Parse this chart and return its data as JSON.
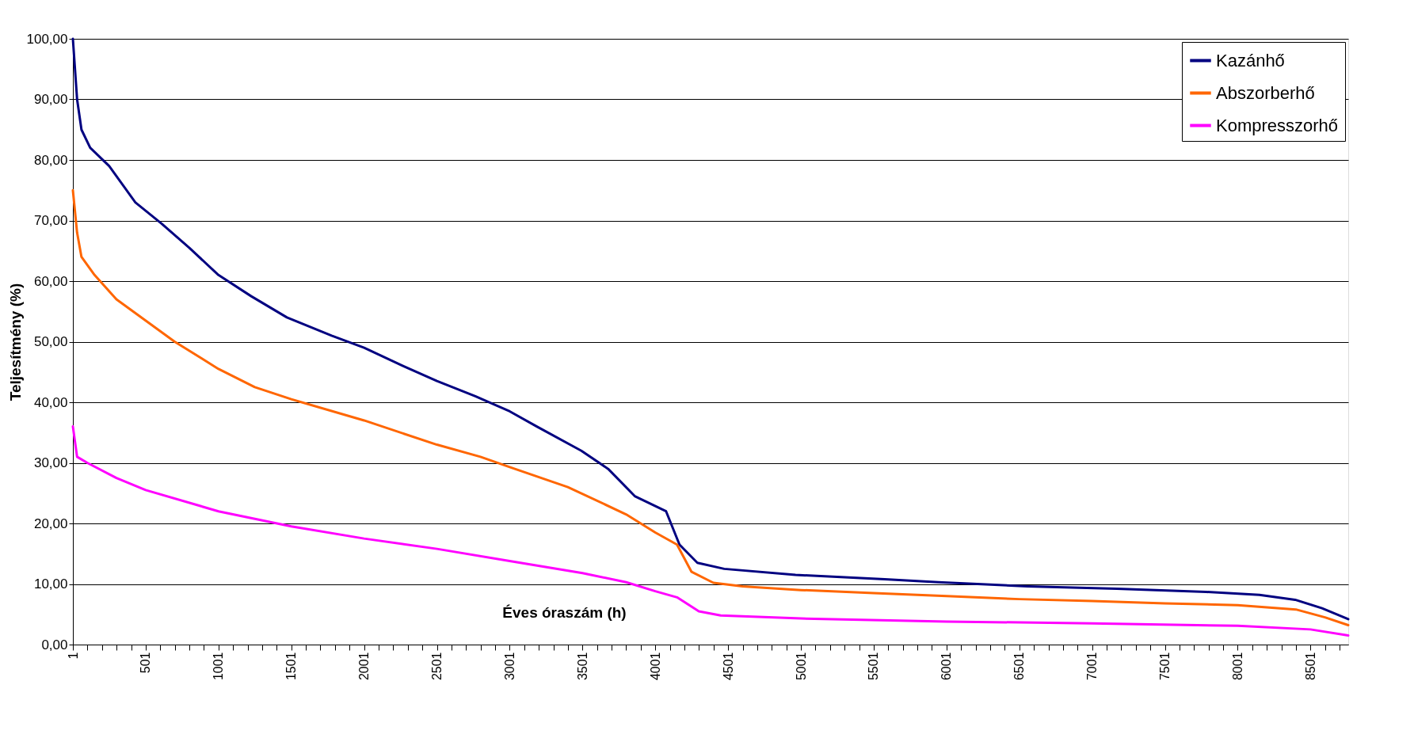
{
  "chart_data": {
    "type": "line",
    "xlabel": "Éves óraszám (h)",
    "ylabel": "Teljesítmény (%)",
    "xlim": [
      1,
      8760
    ],
    "ylim": [
      0,
      100
    ],
    "xticks": [
      1,
      {
        "value": 101,
        "label": null
      },
      {
        "value": 201,
        "label": null
      },
      {
        "value": 301,
        "label": null
      },
      {
        "value": 401,
        "label": null
      },
      501,
      {
        "value": 601,
        "label": null
      },
      {
        "value": 701,
        "label": null
      },
      {
        "value": 801,
        "label": null
      },
      {
        "value": 901,
        "label": null
      },
      1001,
      {
        "value": 1101,
        "label": null
      },
      {
        "value": 1201,
        "label": null
      },
      {
        "value": 1301,
        "label": null
      },
      {
        "value": 1401,
        "label": null
      },
      1501,
      {
        "value": 1601,
        "label": null
      },
      {
        "value": 1701,
        "label": null
      },
      {
        "value": 1801,
        "label": null
      },
      {
        "value": 1901,
        "label": null
      },
      2001,
      {
        "value": 2101,
        "label": null
      },
      {
        "value": 2201,
        "label": null
      },
      {
        "value": 2301,
        "label": null
      },
      {
        "value": 2401,
        "label": null
      },
      2501,
      {
        "value": 2601,
        "label": null
      },
      {
        "value": 2701,
        "label": null
      },
      {
        "value": 2801,
        "label": null
      },
      {
        "value": 2901,
        "label": null
      },
      3001,
      {
        "value": 3101,
        "label": null
      },
      {
        "value": 3201,
        "label": null
      },
      {
        "value": 3301,
        "label": null
      },
      {
        "value": 3401,
        "label": null
      },
      3501,
      {
        "value": 3601,
        "label": null
      },
      {
        "value": 3701,
        "label": null
      },
      {
        "value": 3801,
        "label": null
      },
      {
        "value": 3901,
        "label": null
      },
      4001,
      {
        "value": 4101,
        "label": null
      },
      {
        "value": 4201,
        "label": null
      },
      {
        "value": 4301,
        "label": null
      },
      {
        "value": 4401,
        "label": null
      },
      4501,
      {
        "value": 4601,
        "label": null
      },
      {
        "value": 4701,
        "label": null
      },
      {
        "value": 4801,
        "label": null
      },
      {
        "value": 4901,
        "label": null
      },
      5001,
      {
        "value": 5101,
        "label": null
      },
      {
        "value": 5201,
        "label": null
      },
      {
        "value": 5301,
        "label": null
      },
      {
        "value": 5401,
        "label": null
      },
      5501,
      {
        "value": 5601,
        "label": null
      },
      {
        "value": 5701,
        "label": null
      },
      {
        "value": 5801,
        "label": null
      },
      {
        "value": 5901,
        "label": null
      },
      6001,
      {
        "value": 6101,
        "label": null
      },
      {
        "value": 6201,
        "label": null
      },
      {
        "value": 6301,
        "label": null
      },
      {
        "value": 6401,
        "label": null
      },
      6501,
      {
        "value": 6601,
        "label": null
      },
      {
        "value": 6701,
        "label": null
      },
      {
        "value": 6801,
        "label": null
      },
      {
        "value": 6901,
        "label": null
      },
      7001,
      {
        "value": 7101,
        "label": null
      },
      {
        "value": 7201,
        "label": null
      },
      {
        "value": 7301,
        "label": null
      },
      {
        "value": 7401,
        "label": null
      },
      7501,
      {
        "value": 7601,
        "label": null
      },
      {
        "value": 7701,
        "label": null
      },
      {
        "value": 7801,
        "label": null
      },
      {
        "value": 7901,
        "label": null
      },
      8001,
      {
        "value": 8101,
        "label": null
      },
      {
        "value": 8201,
        "label": null
      },
      {
        "value": 8301,
        "label": null
      },
      {
        "value": 8401,
        "label": null
      },
      8501,
      {
        "value": 8601,
        "label": null
      },
      {
        "value": 8701,
        "label": null
      }
    ],
    "yticks": [
      {
        "value": 0,
        "label": "0,00"
      },
      {
        "value": 10,
        "label": "10,00"
      },
      {
        "value": 20,
        "label": "20,00"
      },
      {
        "value": 30,
        "label": "30,00"
      },
      {
        "value": 40,
        "label": "40,00"
      },
      {
        "value": 50,
        "label": "50,00"
      },
      {
        "value": 60,
        "label": "60,00"
      },
      {
        "value": 70,
        "label": "70,00"
      },
      {
        "value": 80,
        "label": "80,00"
      },
      {
        "value": 90,
        "label": "90,00"
      },
      {
        "value": 100,
        "label": "100,00"
      }
    ],
    "grid": "y",
    "legend": "top right",
    "marker": "none",
    "line_style": "solid",
    "series": [
      {
        "name": "Kazánhő",
        "color": "#000080",
        "x": [
          1,
          30,
          60,
          120,
          250,
          430,
          610,
          800,
          1001,
          1226,
          1471,
          1778,
          2001,
          2268,
          2501,
          2765,
          3001,
          3187,
          3493,
          3677,
          3860,
          4075,
          4167,
          4290,
          4474,
          4964,
          5577,
          5945,
          6557,
          7170,
          7783,
          8150,
          8395,
          8580,
          8760
        ],
        "values": [
          100,
          90,
          85,
          82,
          79,
          73,
          69.5,
          65.5,
          61,
          57.5,
          54,
          51,
          49,
          46,
          43.5,
          41,
          38.5,
          36,
          32,
          29,
          24.5,
          22,
          16.5,
          13.5,
          12.5,
          11.5,
          10.8,
          10.3,
          9.6,
          9.2,
          8.7,
          8.2,
          7.4,
          6,
          4.2
        ]
      },
      {
        "name": "Abszorberhő",
        "color": "#ff6600",
        "x": [
          1,
          30,
          60,
          150,
          300,
          500,
          700,
          1001,
          1250,
          1501,
          2001,
          2501,
          2800,
          3001,
          3400,
          3800,
          4001,
          4150,
          4250,
          4400,
          4600,
          5001,
          5501,
          6001,
          6501,
          7001,
          7501,
          8001,
          8400,
          8600,
          8760
        ],
        "values": [
          75,
          68,
          64,
          61,
          57,
          53.5,
          50,
          45.5,
          42.5,
          40.5,
          37,
          33,
          31,
          29.3,
          26,
          21.5,
          18.5,
          16.5,
          12,
          10.2,
          9.6,
          9,
          8.5,
          8,
          7.5,
          7.2,
          6.8,
          6.5,
          5.8,
          4.5,
          3.2
        ]
      },
      {
        "name": "Kompresszorhő",
        "color": "#ff00ff",
        "x": [
          1,
          30,
          100,
          300,
          501,
          1001,
          1501,
          2001,
          2501,
          3001,
          3501,
          3801,
          4001,
          4150,
          4300,
          4450,
          5001,
          6001,
          7001,
          8001,
          8501,
          8760
        ],
        "values": [
          36,
          31,
          30,
          27.5,
          25.5,
          22,
          19.5,
          17.5,
          15.8,
          13.8,
          11.8,
          10.3,
          8.8,
          7.8,
          5.5,
          4.8,
          4.3,
          3.8,
          3.5,
          3.1,
          2.5,
          1.5
        ]
      }
    ]
  }
}
